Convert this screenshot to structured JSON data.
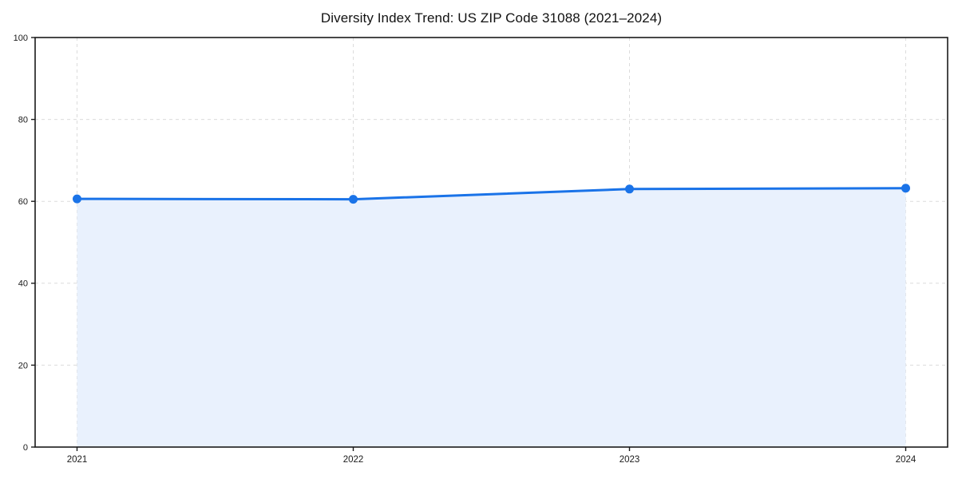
{
  "chart_data": {
    "type": "line",
    "title": "Diversity Index Trend: US ZIP Code 31088 (2021–2024)",
    "categories": [
      "2021",
      "2022",
      "2023",
      "2024"
    ],
    "series": [
      {
        "name": "Diversity Index",
        "values": [
          60.6,
          60.5,
          63.0,
          63.2
        ]
      }
    ],
    "xlabel": "",
    "ylabel": "",
    "ylim": [
      0,
      100
    ],
    "yticks": [
      0,
      20,
      40,
      60,
      80,
      100
    ],
    "grid": true,
    "grid_style": "dashed",
    "legend_position": "none",
    "area_fill": true,
    "marker": "circle",
    "colors": {
      "line": "#1a73e8",
      "marker": "#1a73e8",
      "fill": "#e9f1fd",
      "grid": "#dcdcdc",
      "axis": "#1a1a1a",
      "tick_label": "#1a1a1a",
      "background": "#ffffff"
    }
  }
}
